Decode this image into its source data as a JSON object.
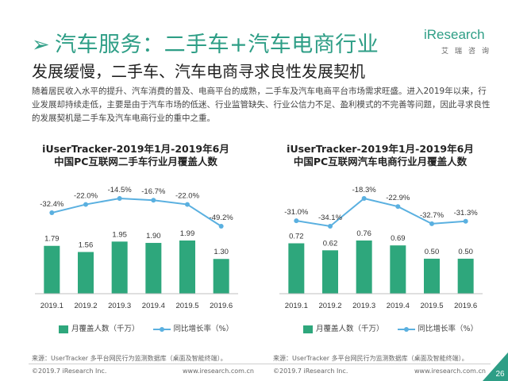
{
  "header": {
    "arrow": "➢",
    "title": "汽车服务：二手车+汽车电商行业",
    "subtitle": "发展缓慢，二手车、汽车电商寻求良性发展契机",
    "intro": "随着居民收入水平的提升、汽车消费的普及、电商平台的成熟，二手车及汽车电商平台市场需求旺盛。进入2019年以来，行业发展却持续走低，主要是由于汽车市场的低迷、行业监管缺失、行业公信力不足、盈利模式的不完善等问题，因此寻求良性的发展契机是二手车及汽车电商行业的重中之重。"
  },
  "logo": {
    "word": "iResearch",
    "sub": "艾瑞咨询"
  },
  "legend": {
    "bar_label": "月覆盖人数（千万）",
    "line_label": "同比增长率（%）"
  },
  "colors": {
    "bar": "#2ea77c",
    "line": "#5ab0e0",
    "title": "#2e9e86"
  },
  "chart_data": [
    {
      "type": "bar",
      "title_line1": "iUserTracker-2019年1月-2019年6月",
      "title_line2": "中国PC互联网二手车行业月覆盖人数",
      "categories": [
        "2019.1",
        "2019.2",
        "2019.3",
        "2019.4",
        "2019.5",
        "2019.6"
      ],
      "series": [
        {
          "name": "月覆盖人数（千万）",
          "type": "bar",
          "values": [
            1.79,
            1.56,
            1.95,
            1.9,
            1.99,
            1.3
          ],
          "labels": [
            "1.79",
            "1.56",
            "1.95",
            "1.90",
            "1.99",
            "1.30"
          ]
        },
        {
          "name": "同比增长率（%）",
          "type": "line",
          "values": [
            -32.4,
            -22.0,
            -14.5,
            -16.7,
            -22.0,
            -49.2
          ],
          "labels": [
            "-32.4%",
            "-22.0%",
            "-14.5%",
            "-16.7%",
            "-22.0%",
            "-49.2%"
          ]
        }
      ],
      "source": "来源：UserTracker 多平台网民行为监测数据库（桌面及智能终端）。"
    },
    {
      "type": "bar",
      "title_line1": "iUserTracker-2019年1月-2019年6月",
      "title_line2": "中国PC互联网汽车电商行业月覆盖人数",
      "categories": [
        "2019.1",
        "2019.2",
        "2019.3",
        "2019.4",
        "2019.5",
        "2019.6"
      ],
      "series": [
        {
          "name": "月覆盖人数（千万）",
          "type": "bar",
          "values": [
            0.72,
            0.62,
            0.76,
            0.69,
            0.5,
            0.5
          ],
          "labels": [
            "0.72",
            "0.62",
            "0.76",
            "0.69",
            "0.50",
            "0.50"
          ]
        },
        {
          "name": "同比增长率（%）",
          "type": "line",
          "values": [
            -31.0,
            -34.1,
            -18.3,
            -22.9,
            -32.7,
            -31.3
          ],
          "labels": [
            "-31.0%",
            "-34.1%",
            "-18.3%",
            "-22.9%",
            "-32.7%",
            "-31.3%"
          ]
        }
      ],
      "source": "来源：UserTracker 多平台网民行为监测数据库（桌面及智能终端）。"
    }
  ],
  "footer": {
    "copyright": "©2019.7 iResearch Inc.",
    "website": "www.iresearch.com.cn",
    "page": "26"
  }
}
